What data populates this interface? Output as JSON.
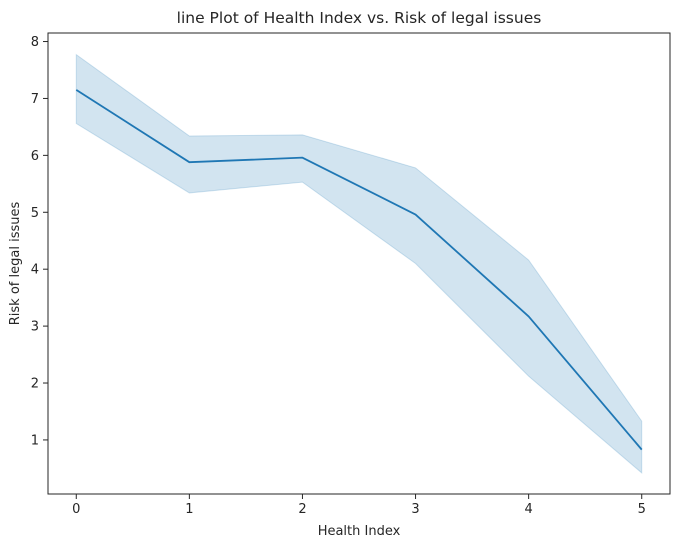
{
  "chart_data": {
    "type": "line",
    "title": "line Plot of Health Index vs. Risk of legal issues",
    "xlabel": "Health Index",
    "ylabel": "Risk of legal issues",
    "x": [
      0,
      1,
      2,
      3,
      4,
      5
    ],
    "xticks": [
      "0",
      "1",
      "2",
      "3",
      "4",
      "5"
    ],
    "yticks": [
      "1",
      "2",
      "3",
      "4",
      "5",
      "6",
      "7",
      "8"
    ],
    "xlim": [
      -0.25,
      5.25
    ],
    "ylim": [
      0.05,
      8.15
    ],
    "grid": false,
    "series": [
      {
        "values": [
          7.15,
          5.88,
          5.96,
          4.96,
          3.17,
          0.83
        ],
        "ci_lower": [
          6.56,
          5.34,
          5.53,
          4.1,
          2.12,
          0.42
        ],
        "ci_upper": [
          7.77,
          6.34,
          6.36,
          5.78,
          4.16,
          1.33
        ],
        "color": "#1f77b4",
        "band_color": "#1f77b4"
      }
    ]
  }
}
